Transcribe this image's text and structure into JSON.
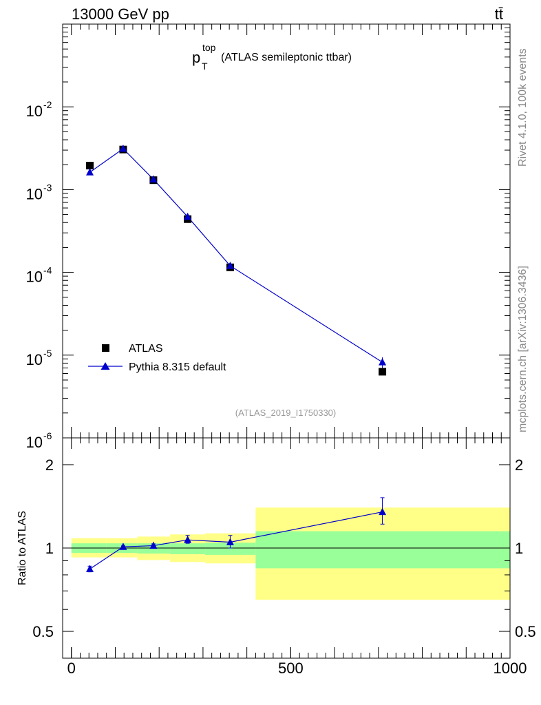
{
  "header": {
    "energy_label": "13000 GeV pp",
    "process_label": "tt̄"
  },
  "side_labels": {
    "rivet": "Rivet 4.1.0,  100k events",
    "source": "mcplots.cern.ch [arXiv:1306.3436]"
  },
  "colors": {
    "data": "#000000",
    "mc": "#0000cc",
    "band_outer": "#ffff88",
    "band_inner": "#99ff99",
    "ref_line": "#000000",
    "watermark": "#999999",
    "side_text": "#888888"
  },
  "chart_data": [
    {
      "type": "scatter",
      "panel": "main",
      "title_main": "p",
      "title_sup": "top",
      "title_sub": "T",
      "title_rest": "(ATLAS semileptonic ttbar)",
      "analysis_id": "(ATLAS_2019_I1750330)",
      "yscale": "log",
      "xlim": [
        -20,
        1000
      ],
      "ylim": [
        1e-06,
        0.1
      ],
      "y_tick_labels": [
        {
          "base": "10",
          "exp": "-2",
          "value": 0.01
        },
        {
          "base": "10",
          "exp": "-3",
          "value": 0.001
        },
        {
          "base": "10",
          "exp": "-4",
          "value": 0.0001
        },
        {
          "base": "10",
          "exp": "-5",
          "value": 1e-05
        },
        {
          "base": "10",
          "exp": "-6",
          "value": 1e-06
        }
      ],
      "x": [
        42,
        118,
        187,
        265,
        362,
        709
      ],
      "series": [
        {
          "name": "ATLAS",
          "marker": "square",
          "values": [
            0.00195,
            0.00305,
            0.0013,
            0.00044,
            0.000115,
            6.3e-06
          ]
        },
        {
          "name": "Pythia 8.315 default",
          "marker": "triangle",
          "line": true,
          "values": [
            0.00162,
            0.00312,
            0.00133,
            0.00047,
            0.00012,
            8.2e-06
          ],
          "err_lo": [
            8.8e-06,
            8.8e-06,
            1.3e-05,
            5e-06,
            2e-06,
            1.2e-06
          ],
          "err_hi": [
            8.8e-06,
            8.8e-06,
            1.3e-05,
            5e-06,
            2e-06,
            1.2e-06
          ]
        }
      ],
      "legend": [
        {
          "label": "ATLAS",
          "marker": "square"
        },
        {
          "label": "Pythia 8.315 default",
          "marker": "triangle"
        }
      ],
      "legend_position": "lower-left"
    },
    {
      "type": "scatter",
      "panel": "ratio",
      "ylabel": "Ratio to ATLAS",
      "yscale": "log",
      "xlim": [
        -20,
        1000
      ],
      "ylim": [
        0.4,
        2.5
      ],
      "y_tick_labels": [
        {
          "label": "2",
          "value": 2
        },
        {
          "label": "1",
          "value": 1
        },
        {
          "label": "0.5",
          "value": 0.5
        }
      ],
      "x_tick_labels": [
        {
          "label": "0",
          "value": 0
        },
        {
          "label": "500",
          "value": 500
        },
        {
          "label": "1000",
          "value": 1000
        }
      ],
      "band_edges": [
        0,
        80,
        150,
        225,
        305,
        420,
        1000
      ],
      "band_outer": [
        [
          0.925,
          1.085
        ],
        [
          0.925,
          1.085
        ],
        [
          0.905,
          1.1
        ],
        [
          0.89,
          1.12
        ],
        [
          0.88,
          1.13
        ],
        [
          0.65,
          1.4
        ]
      ],
      "band_inner": [
        [
          0.96,
          1.04
        ],
        [
          0.96,
          1.04
        ],
        [
          0.955,
          1.04
        ],
        [
          0.95,
          1.04
        ],
        [
          0.945,
          1.045
        ],
        [
          0.845,
          1.15
        ]
      ],
      "x": [
        42,
        118,
        187,
        265,
        362,
        709
      ],
      "values": [
        0.84,
        1.01,
        1.02,
        1.07,
        1.05,
        1.35
      ],
      "err_lo": [
        0.02,
        0.008,
        0.015,
        0.03,
        0.05,
        0.13
      ],
      "err_hi": [
        0.02,
        0.008,
        0.015,
        0.04,
        0.06,
        0.17
      ]
    }
  ]
}
